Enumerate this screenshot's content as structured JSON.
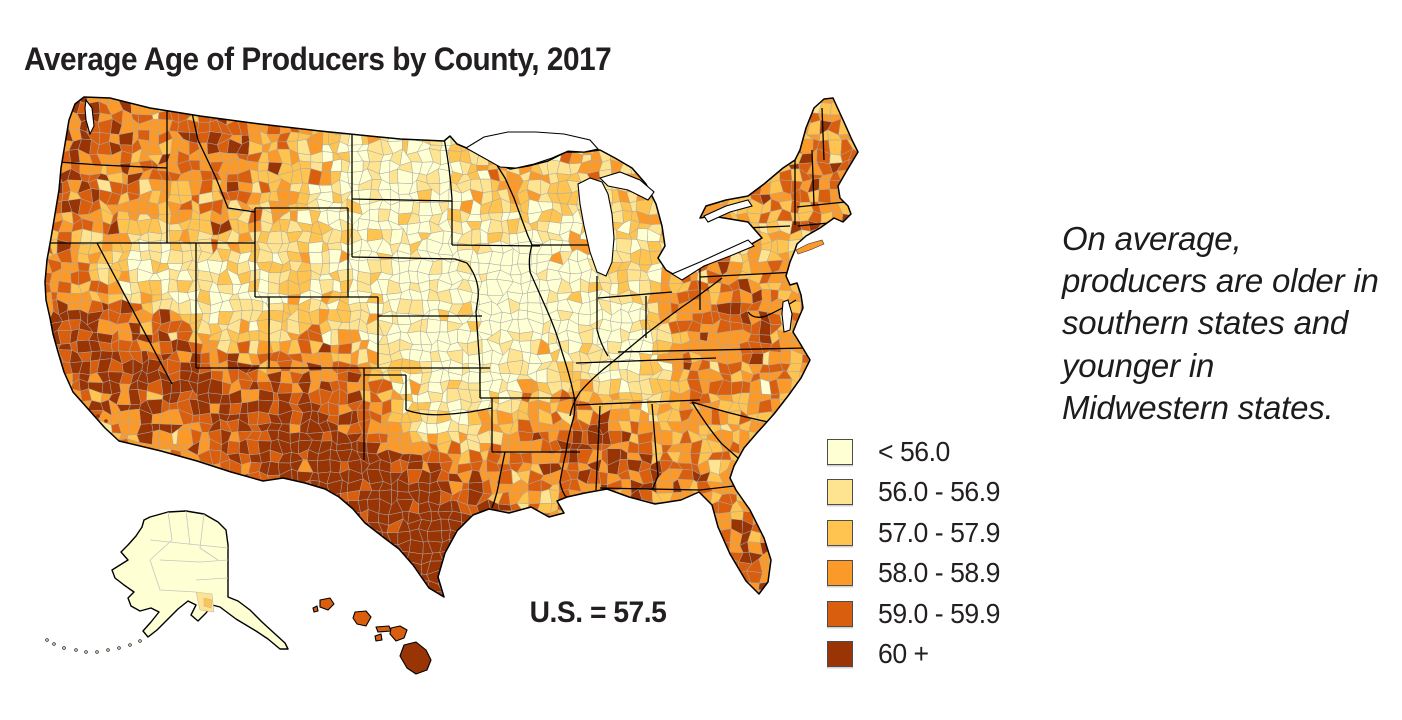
{
  "title": "Average Age of Producers by County, 2017",
  "us_average_label": "U.S. = 57.5",
  "annotation": "On average, producers are older in southern states and younger in Midwestern states.",
  "chart_data": {
    "type": "choropleth",
    "title": "Average Age of Producers by County, 2017",
    "geography": "United States counties, with Alaska and Hawaii insets",
    "year": 2017,
    "variable": "Average age of producers (years)",
    "us_average": 57.5,
    "legend_position": "right-center",
    "classes": [
      {
        "label": "< 56.0",
        "min": null,
        "max": 56.0,
        "color": "#FFFFD4"
      },
      {
        "label": "56.0 - 56.9",
        "min": 56.0,
        "max": 56.9,
        "color": "#FEE391"
      },
      {
        "label": "57.0 - 57.9",
        "min": 57.0,
        "max": 57.9,
        "color": "#FEC44F"
      },
      {
        "label": "58.0 - 58.9",
        "min": 58.0,
        "max": 58.9,
        "color": "#FB9A29"
      },
      {
        "label": "59.0 - 59.9",
        "min": 59.0,
        "max": 59.9,
        "color": "#D95F0E"
      },
      {
        "label": "60 +",
        "min": 60.0,
        "max": null,
        "color": "#993404"
      }
    ],
    "annotation": "On average, producers are older in southern states and younger in Midwestern states."
  },
  "colors": {
    "title_text": "#231f20",
    "annotation_text": "#1c1c1e",
    "county_border": "#a8a8a8",
    "state_border": "#000000",
    "water": "#ffffff"
  }
}
